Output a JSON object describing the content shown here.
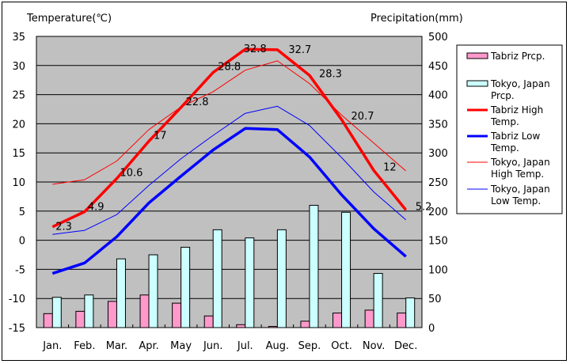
{
  "chart_data": {
    "type": "bar+line",
    "categories": [
      "Jan.",
      "Feb.",
      "Mar.",
      "Apr.",
      "May",
      "Jun.",
      "Jul.",
      "Aug.",
      "Sep.",
      "Oct.",
      "Nov.",
      "Dec."
    ],
    "left_axis": {
      "label": "Temperature(℃)",
      "range": [
        -15,
        35
      ],
      "ticks": [
        35,
        30,
        25,
        20,
        15,
        10,
        5,
        0,
        -5,
        -10,
        -15
      ]
    },
    "right_axis": {
      "label": "Precipitation(mm)",
      "range": [
        0,
        500
      ],
      "ticks": [
        500,
        450,
        400,
        350,
        300,
        250,
        200,
        150,
        100,
        50,
        0
      ]
    },
    "grid": true,
    "legend_position": "right",
    "series": [
      {
        "name": "Tabriz Prcp.",
        "kind": "bar",
        "axis": "right",
        "color": "#ff99cc",
        "values": [
          24,
          28,
          45,
          56,
          42,
          20,
          5,
          2,
          11,
          25,
          30,
          25
        ]
      },
      {
        "name": "Tokyo, Japan Prcp.",
        "kind": "bar",
        "axis": "right",
        "color": "#ccffff",
        "values": [
          52,
          56,
          118,
          125,
          138,
          168,
          154,
          168,
          210,
          198,
          93,
          51
        ]
      },
      {
        "name": "Tabriz High Temp.",
        "kind": "line",
        "axis": "left",
        "color": "#ff0000",
        "width": "thick",
        "values": [
          2.3,
          4.9,
          10.6,
          17,
          22.8,
          28.8,
          32.8,
          32.7,
          28.3,
          20.7,
          12,
          5.2
        ],
        "labels": [
          "2.3",
          "4.9",
          "10.6",
          "17",
          "22.8",
          "28.8",
          "32.8",
          "32.7",
          "28.3",
          "20.7",
          "12",
          "5.2"
        ]
      },
      {
        "name": "Tabriz Low Temp.",
        "kind": "line",
        "axis": "left",
        "color": "#0000ff",
        "width": "thick",
        "values": [
          -5.7,
          -3.9,
          0.6,
          6.4,
          11,
          15.5,
          19.2,
          19,
          14.3,
          7.8,
          2,
          -2.8
        ]
      },
      {
        "name": "Tokyo, Japan High Temp.",
        "kind": "line",
        "axis": "left",
        "color": "#ff0000",
        "width": "thin",
        "values": [
          9.6,
          10.4,
          13.6,
          19,
          22.9,
          25.5,
          29.2,
          30.8,
          26.9,
          21.5,
          16.7,
          11.9
        ]
      },
      {
        "name": "Tokyo, Japan Low Temp.",
        "kind": "line",
        "axis": "left",
        "color": "#0000ff",
        "width": "thin",
        "values": [
          1,
          1.7,
          4.4,
          9.4,
          14,
          18,
          21.8,
          23,
          19.7,
          14.2,
          8.3,
          3.5
        ]
      }
    ],
    "legend": [
      {
        "line1": "Tabriz Prcp.",
        "line2": ""
      },
      {
        "line1": "Tokyo, Japan",
        "line2": "Prcp."
      },
      {
        "line1": "Tabriz High",
        "line2": "Temp."
      },
      {
        "line1": "Tabriz Low",
        "line2": "Temp."
      },
      {
        "line1": "Tokyo, Japan",
        "line2": "High Temp."
      },
      {
        "line1": "Tokyo, Japan",
        "line2": "Low Temp."
      }
    ],
    "colors": {
      "plot_bg": "#c0c0c0"
    }
  }
}
